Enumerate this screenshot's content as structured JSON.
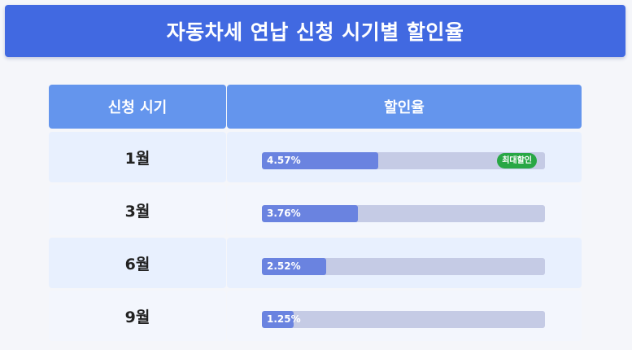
{
  "header": {
    "title": "자동차세 연납 신청 시기별 할인율"
  },
  "table": {
    "columns": [
      "신청 시기",
      "할인율"
    ],
    "rows": [
      {
        "period": "1월",
        "rate_label": "4.57%",
        "rate_value": 4.57,
        "badge": "최대할인"
      },
      {
        "period": "3월",
        "rate_label": "3.76%",
        "rate_value": 3.76
      },
      {
        "period": "6월",
        "rate_label": "2.52%",
        "rate_value": 2.52
      },
      {
        "period": "9월",
        "rate_label": "1.25%",
        "rate_value": 1.25
      }
    ],
    "bar_scale_max": 11.1
  },
  "colors": {
    "header_bg": "#4169e1",
    "column_header_bg": "#6495ed",
    "bar_fill": "#6a83e0",
    "bar_track": "#c5cbe5",
    "badge_bg": "#28a745"
  }
}
